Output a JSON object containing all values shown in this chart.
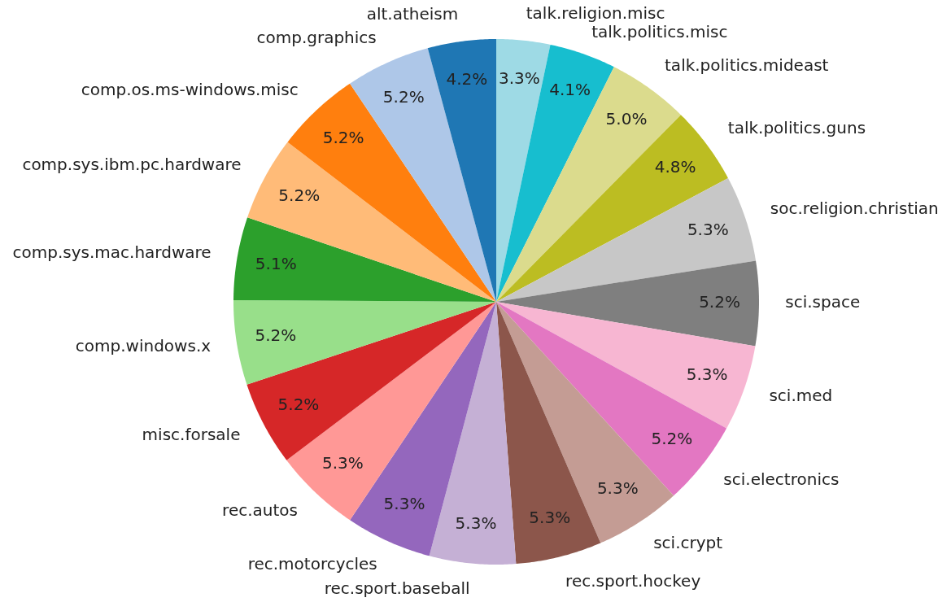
{
  "chart_data": {
    "type": "pie",
    "categories": [
      "talk.religion.misc",
      "talk.politics.misc",
      "talk.politics.mideast",
      "talk.politics.guns",
      "soc.religion.christian",
      "sci.space",
      "sci.med",
      "sci.electronics",
      "sci.crypt",
      "rec.sport.hockey",
      "rec.sport.baseball",
      "rec.motorcycles",
      "rec.autos",
      "misc.forsale",
      "comp.windows.x",
      "comp.sys.mac.hardware",
      "comp.sys.ibm.pc.hardware",
      "comp.os.ms-windows.misc",
      "comp.graphics",
      "alt.atheism"
    ],
    "values": [
      3.3,
      4.1,
      5.0,
      4.8,
      5.3,
      5.2,
      5.3,
      5.2,
      5.3,
      5.3,
      5.3,
      5.3,
      5.3,
      5.2,
      5.2,
      5.1,
      5.2,
      5.2,
      5.2,
      4.2
    ],
    "colors": [
      "#9edae5",
      "#17becf",
      "#dbdb8d",
      "#bcbd22",
      "#c7c7c7",
      "#7f7f7f",
      "#f7b6d2",
      "#e377c2",
      "#c49c94",
      "#8c564b",
      "#c5b0d5",
      "#9467bd",
      "#ff9896",
      "#d62728",
      "#98df8a",
      "#2ca02c",
      "#ffbb78",
      "#ff7f0e",
      "#aec7e8",
      "#1f77b4"
    ],
    "value_labels": [
      "3.3%",
      "4.1%",
      "5.0%",
      "4.8%",
      "5.3%",
      "5.2%",
      "5.3%",
      "5.2%",
      "5.3%",
      "5.3%",
      "5.3%",
      "5.3%",
      "5.3%",
      "5.2%",
      "5.2%",
      "5.1%",
      "5.2%",
      "5.2%",
      "5.2%",
      "4.2%"
    ]
  }
}
